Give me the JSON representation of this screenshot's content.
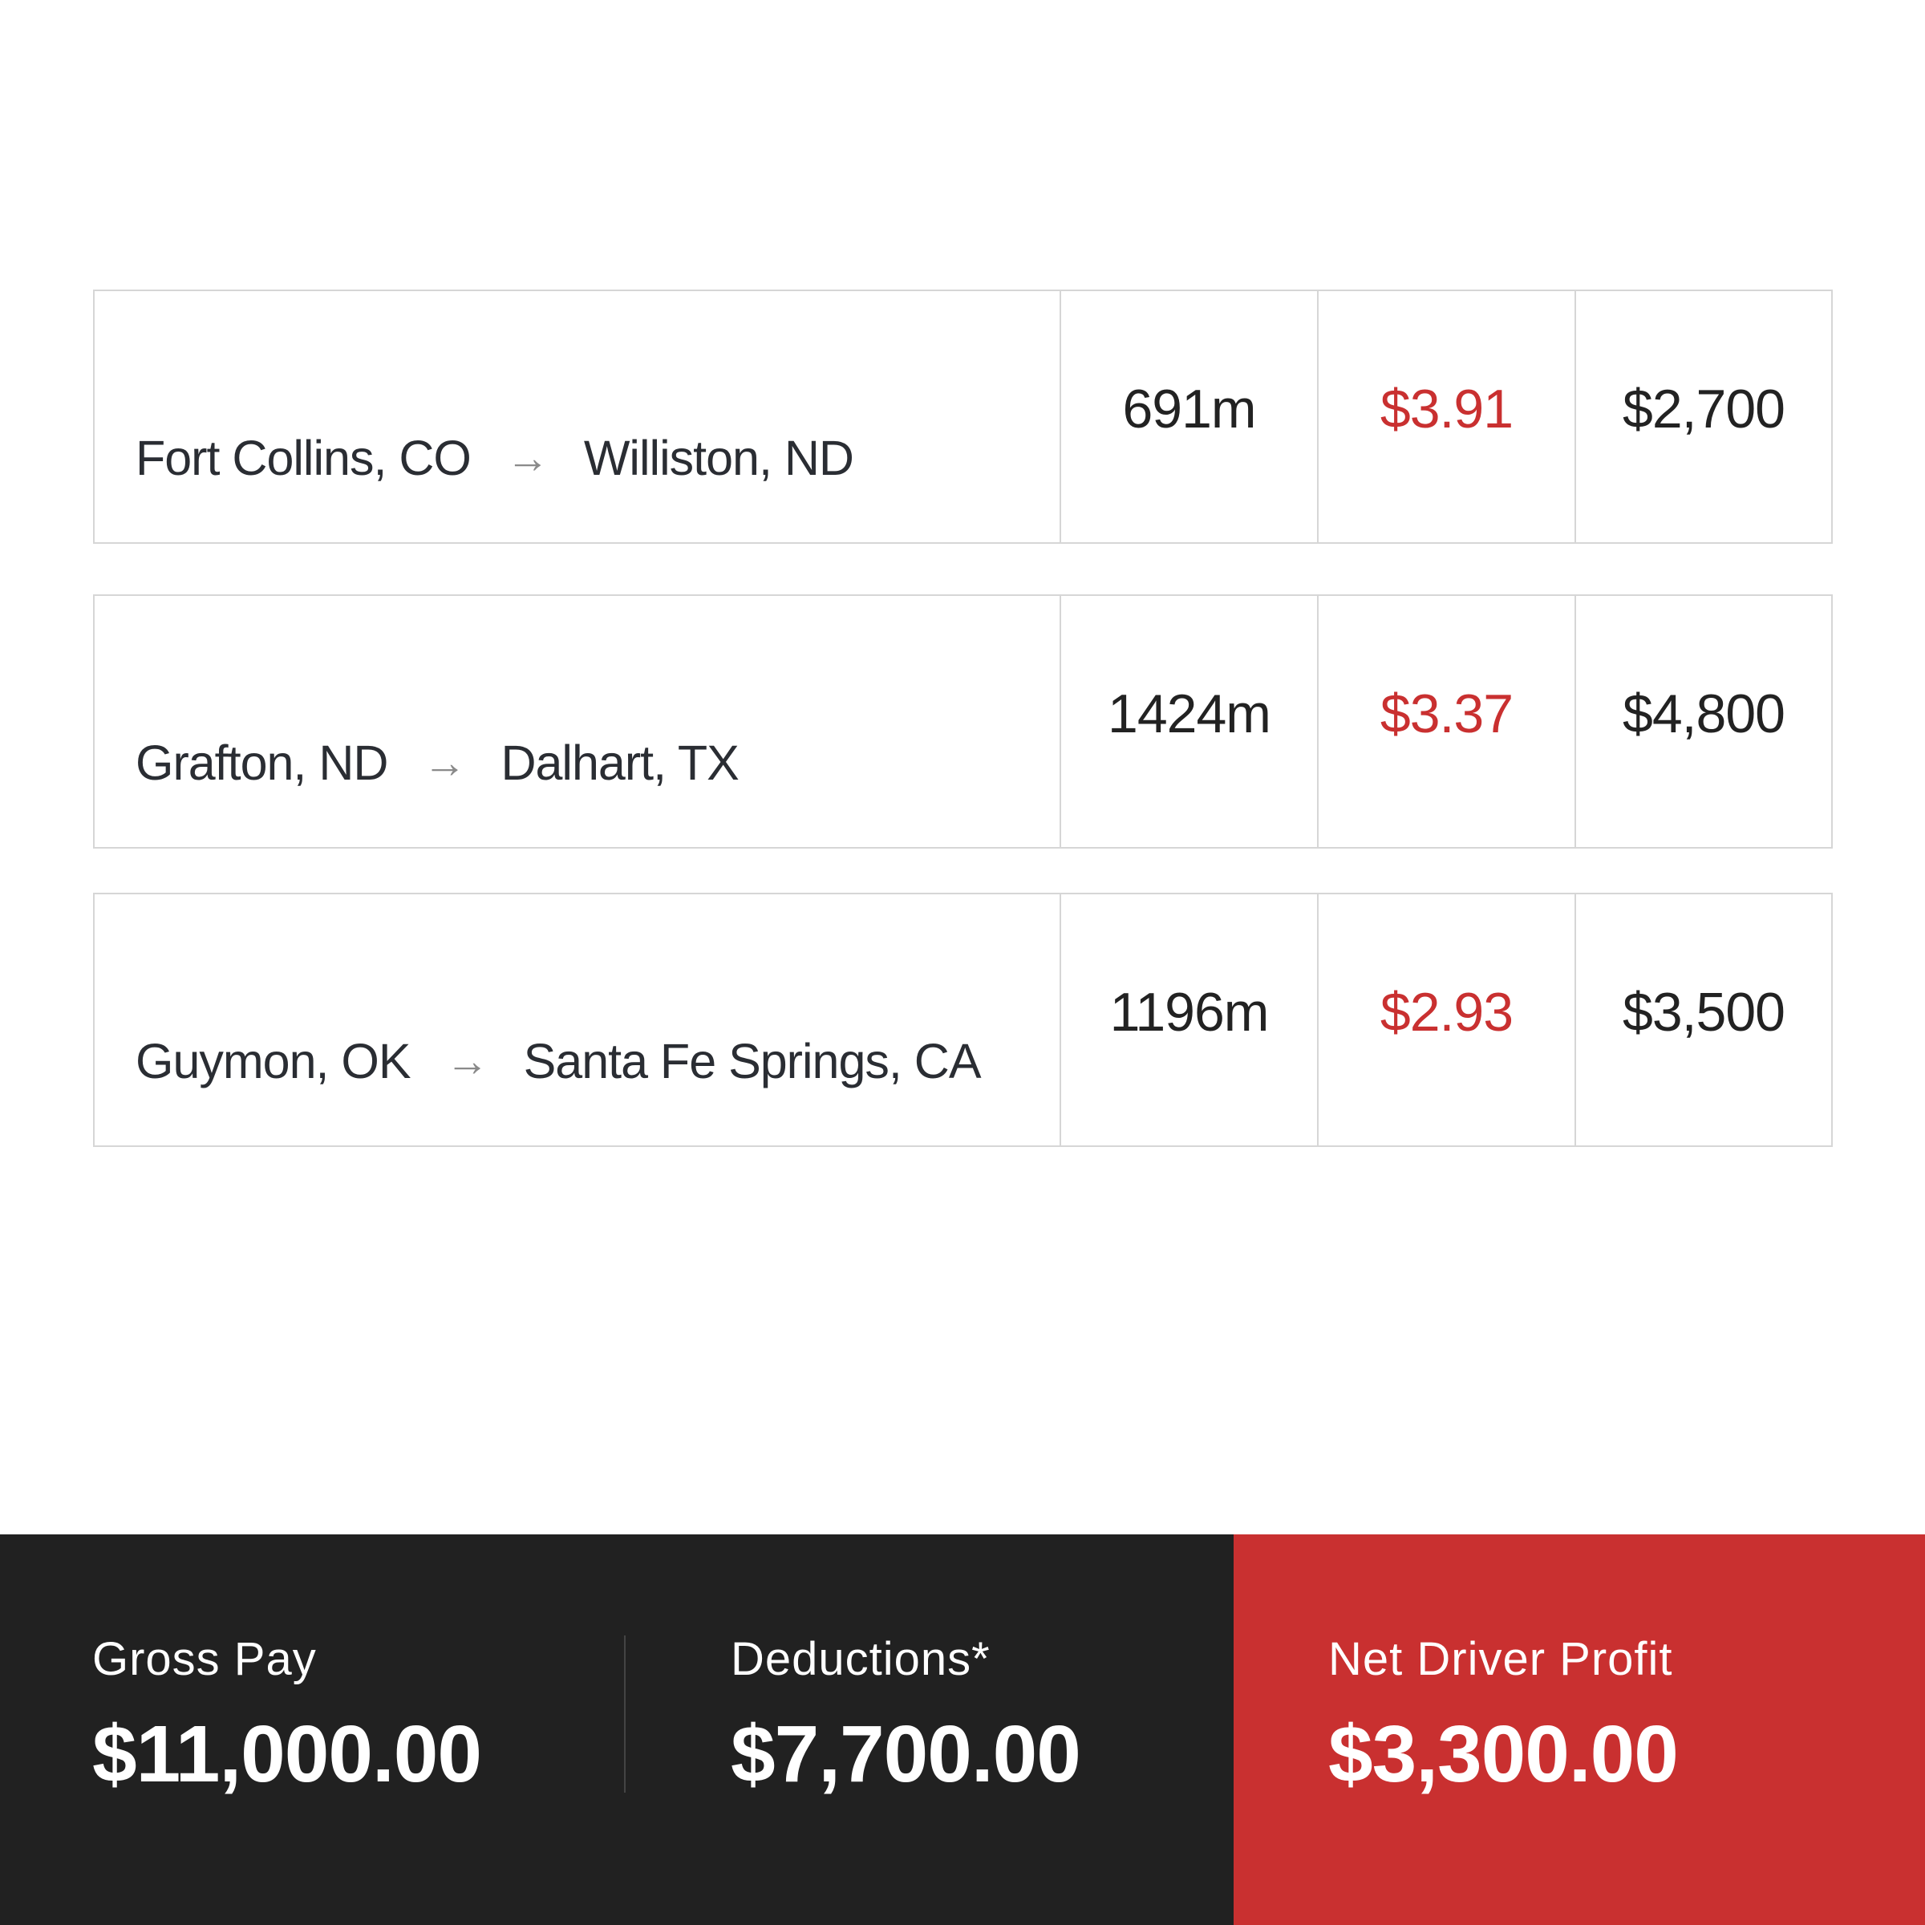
{
  "loads": [
    {
      "origin": "Fort Collins, CO",
      "destination": "Williston, ND",
      "miles": "691m",
      "rate": "$3.91",
      "pay": "$2,700"
    },
    {
      "origin": "Grafton, ND",
      "destination": "Dalhart, TX",
      "miles": "1424m",
      "rate": "$3.37",
      "pay": "$4,800"
    },
    {
      "origin": "Guymon, OK",
      "destination": "Santa Fe Springs, CA",
      "miles": "1196m",
      "rate": "$2.93",
      "pay": "$3,500"
    }
  ],
  "arrow": "→",
  "summary": {
    "gross_label": "Gross Pay",
    "gross_value": "$11,000.00",
    "deductions_label": "Deductions*",
    "deductions_value": "$7,700.00",
    "net_label": "Net Driver Profit",
    "net_value": "$3,300.00"
  },
  "colors": {
    "accent": "#c93030",
    "dark": "#212121"
  }
}
